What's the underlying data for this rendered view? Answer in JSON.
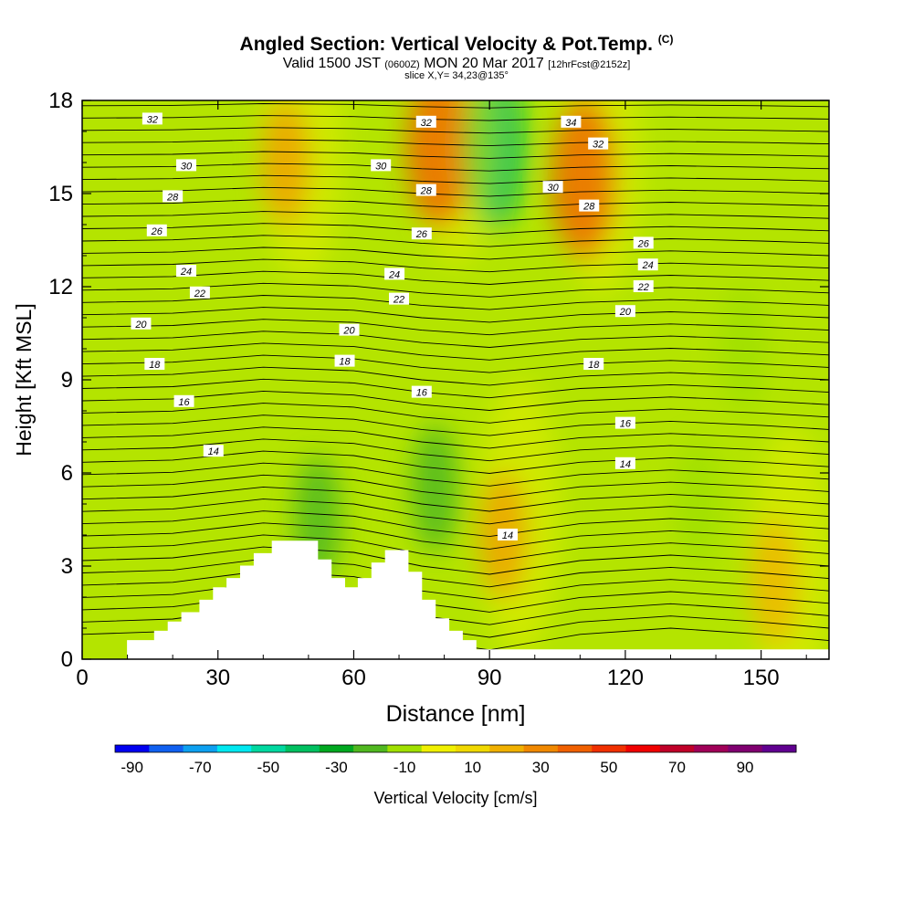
{
  "header": {
    "title": "Angled Section: Vertical Velocity & Pot.Temp.",
    "title_unit": "(C)",
    "valid_prefix": "Valid 1500 JST",
    "valid_z": "(0600Z)",
    "valid_date": "MON 20 Mar 2017",
    "forecast": "[12hrFcst@2152z]",
    "slice": "slice X,Y= 34,23@135°"
  },
  "chart_data": {
    "type": "heatmap",
    "xlabel": "Distance [nm]",
    "ylabel": "Height [Kft MSL]",
    "xlim": [
      0,
      165
    ],
    "ylim": [
      0,
      18
    ],
    "x_ticks": [
      "0",
      "30",
      "60",
      "90",
      "120",
      "150"
    ],
    "y_ticks": [
      "0",
      "3",
      "6",
      "9",
      "12",
      "15",
      "18"
    ],
    "colorbar": {
      "label": "Vertical Velocity [cm/s]",
      "tick_labels": [
        "-90",
        "-70",
        "-50",
        "-30",
        "-10",
        "10",
        "30",
        "50",
        "70",
        "90"
      ],
      "colors": [
        "#0000f0",
        "#1060f0",
        "#0da0f0",
        "#00e8f0",
        "#00d8a0",
        "#00c060",
        "#00a820",
        "#50b820",
        "#a0e000",
        "#f0f000",
        "#f0d800",
        "#f0b000",
        "#f08800",
        "#f06000",
        "#f03000",
        "#f00000",
        "#c00028",
        "#a00058",
        "#800070",
        "#600090"
      ]
    },
    "velocity_features": [
      {
        "x": 79,
        "y": 16.5,
        "value": 55
      },
      {
        "x": 111,
        "y": 15.5,
        "value": 55
      },
      {
        "x": 45,
        "y": 16,
        "value": 35
      },
      {
        "x": 93,
        "y": 4,
        "value": 35
      },
      {
        "x": 153,
        "y": 2.5,
        "value": 25
      },
      {
        "x": 91,
        "y": 16.5,
        "value": -50
      },
      {
        "x": 52,
        "y": 4.5,
        "value": -30
      },
      {
        "x": 78,
        "y": 5.5,
        "value": -30
      },
      {
        "x": 136,
        "y": 5,
        "value": -20
      },
      {
        "x": 146,
        "y": 10,
        "value": -20
      }
    ],
    "terrain": {
      "x": [
        0,
        10,
        16,
        19,
        22,
        26,
        29,
        32,
        35,
        38,
        42,
        52,
        55,
        58,
        61,
        64,
        67,
        72,
        75,
        78,
        81,
        84,
        87,
        165
      ],
      "height": [
        0,
        0.6,
        0.9,
        1.2,
        1.5,
        1.9,
        2.3,
        2.6,
        3.0,
        3.4,
        3.8,
        3.2,
        2.6,
        2.3,
        2.6,
        3.1,
        3.5,
        2.8,
        1.9,
        1.3,
        0.9,
        0.6,
        0.3,
        0
      ]
    },
    "theta_contour_labels": [
      {
        "x": 15.5,
        "y": 17.4,
        "text": "32"
      },
      {
        "x": 76,
        "y": 17.3,
        "text": "32"
      },
      {
        "x": 108,
        "y": 17.3,
        "text": "34"
      },
      {
        "x": 114,
        "y": 16.6,
        "text": "32"
      },
      {
        "x": 23,
        "y": 15.9,
        "text": "30"
      },
      {
        "x": 66,
        "y": 15.9,
        "text": "30"
      },
      {
        "x": 104,
        "y": 15.2,
        "text": "30"
      },
      {
        "x": 20,
        "y": 14.9,
        "text": "28"
      },
      {
        "x": 76,
        "y": 15.1,
        "text": "28"
      },
      {
        "x": 112,
        "y": 14.6,
        "text": "28"
      },
      {
        "x": 16.5,
        "y": 13.8,
        "text": "26"
      },
      {
        "x": 75,
        "y": 13.7,
        "text": "26"
      },
      {
        "x": 124,
        "y": 13.4,
        "text": "26"
      },
      {
        "x": 23,
        "y": 12.5,
        "text": "24"
      },
      {
        "x": 69,
        "y": 12.4,
        "text": "24"
      },
      {
        "x": 125,
        "y": 12.7,
        "text": "24"
      },
      {
        "x": 26,
        "y": 11.8,
        "text": "22"
      },
      {
        "x": 70,
        "y": 11.6,
        "text": "22"
      },
      {
        "x": 124,
        "y": 12.0,
        "text": "22"
      },
      {
        "x": 13,
        "y": 10.8,
        "text": "20"
      },
      {
        "x": 59,
        "y": 10.6,
        "text": "20"
      },
      {
        "x": 120,
        "y": 11.2,
        "text": "20"
      },
      {
        "x": 16,
        "y": 9.5,
        "text": "18"
      },
      {
        "x": 58,
        "y": 9.6,
        "text": "18"
      },
      {
        "x": 113,
        "y": 9.5,
        "text": "18"
      },
      {
        "x": 22.5,
        "y": 8.3,
        "text": "16"
      },
      {
        "x": 75,
        "y": 8.6,
        "text": "16"
      },
      {
        "x": 120,
        "y": 7.6,
        "text": "16"
      },
      {
        "x": 29,
        "y": 6.7,
        "text": "14"
      },
      {
        "x": 120,
        "y": 6.3,
        "text": "14"
      },
      {
        "x": 94,
        "y": 4.0,
        "text": "14"
      }
    ]
  }
}
